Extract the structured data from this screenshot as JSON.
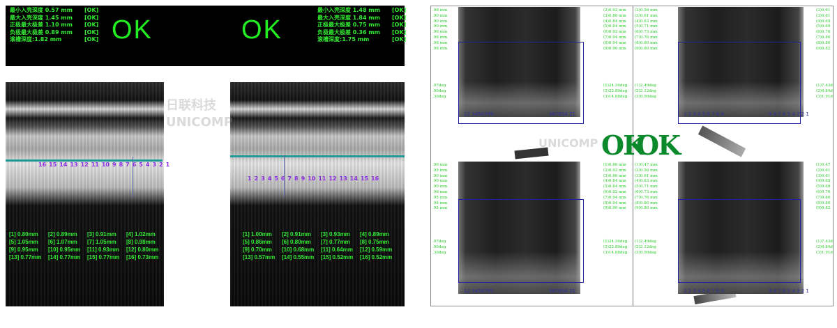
{
  "left_view": {
    "top_left": {
      "lines": [
        {
          "label": "最小入壳深度 0.57 mm",
          "status": "[OK]"
        },
        {
          "label": "最大入壳深度 1.45 mm",
          "status": "[OK]"
        },
        {
          "label": "正极最大极差 1.10 mm",
          "status": "[OK]"
        },
        {
          "label": "负极最大极差 0.89 mm",
          "status": "[OK]"
        },
        {
          "label": "滚槽深度:1.82 mm",
          "status": "[OK]"
        }
      ],
      "result": "OK"
    },
    "top_right": {
      "lines": [
        {
          "label": "最小入壳深度 1.48 mm",
          "status": "[OK]"
        },
        {
          "label": "最大入壳深度 1.84 mm",
          "status": "[OK]"
        },
        {
          "label": "正极最大极差 0.75 mm",
          "status": "[OK]"
        },
        {
          "label": "负极最大极差 0.36 mm",
          "status": "[OK]"
        },
        {
          "label": "滚槽深度:1.75 mm",
          "status": "[OK]"
        }
      ],
      "result": "OK"
    },
    "left_image": {
      "point_labels": [
        "16",
        "15",
        "14",
        "13",
        "12",
        "11",
        "10",
        "9",
        "8",
        "7",
        "6",
        "5",
        "4",
        "3",
        "2",
        "1"
      ],
      "values": [
        "[1] 0.80mm",
        "[2] 0.89mm",
        "[3] 0.91mm",
        "[4] 1.02mm",
        "[5] 1.05mm",
        "[6] 1.07mm",
        "[7] 1.05mm",
        "[8] 0.98mm",
        "[9] 0.95mm",
        "[10] 0.95mm",
        "[11] 0.93mm",
        "[12] 0.80mm",
        "[13] 0.77mm",
        "[14] 0.77mm",
        "[15] 0.77mm",
        "[16] 0.73mm"
      ]
    },
    "right_image": {
      "point_labels": [
        "1",
        "2",
        "3",
        "4",
        "5",
        "6",
        "7",
        "8",
        "9",
        "10",
        "11",
        "12",
        "13",
        "14",
        "15",
        "16"
      ],
      "values": [
        "[1] 1.00mm",
        "[2] 0.91mm",
        "[3] 0.93mm",
        "[4] 0.89mm",
        "[5] 0.86mm",
        "[6] 0.80mm",
        "[7] 0.77mm",
        "[8] 0.75mm",
        "[9] 0.70mm",
        "[10] 0.68mm",
        "[11] 0.64mm",
        "[12] 0.59mm",
        "[13] 0.57mm",
        "[14] 0.55mm",
        "[15] 0.52mm",
        "[16] 0.52mm"
      ]
    },
    "watermark": "日联科技 UNICOMP"
  },
  "right_view": {
    "quadrants": [
      {
        "left_col": ".98 mm\n.90 mm\n.90 mm\n.90 mm\n.96 mm\n.98 mm\n.98 mm\n.98 mm",
        "left_deg": ".07deg\n.00deg\n.30deg",
        "right_col": "(2)0.92 mm\n(3)0.86 mm\n(4)0.84 mm\n(5)0.84 mm\n(6)0.92 mm\n(7)0.94 mm\n(8)0.94 mm\n(9)0.90 mm",
        "right_deg": "(1)24.34deg\n(2)22.89deg\n(3)14.68deg",
        "pts_left": "12 3456789",
        "pts_right": "987654 21"
      },
      {
        "left_col": "(2)0.56 mm\n(3)0.61 mm\n(4)0.63 mm\n(5)0.71 mm\n(6)0.73 mm\n(7)0.76 mm\n(8)0.80 mm\n(9)0.80 mm",
        "left_deg": "(1)2.49deg\n(2)2.12deg\n(3)0.00deg",
        "right_col": "(2)0.61\n(3)0.61\n(4)0.65\n(5)0.69\n(6)0.76\n(7)0.80\n(8)0.80\n(9)0.82",
        "right_deg": "(1)7.43d\n(2)6.84d\n(3)1.91d",
        "pts_left": "1 2 3 4 5 6 7 8 9",
        "pts_right": "9 8 7 6 5 4 3 2 1"
      },
      {
        "left_col": ".96 mm\n.95 mm\n.90 mm\n.90 mm\n.90 mm\n.96 mm\n.95 mm\n.95 mm\n.95 mm",
        "left_deg": ".07deg\n.00deg\n.30deg",
        "right_col": "(1)0.86 mm\n(2)0.92 mm\n(3)0.86 mm\n(4)0.84 mm\n(5)0.84 mm\n(6)0.92 mm\n(7)0.94 mm\n(8)0.94 mm\n(9)0.90 mm",
        "right_deg": "(1)24.34deg\n(2)22.89deg\n(3)14.68deg",
        "pts_left": "12 3456789",
        "pts_right": "987654 21"
      },
      {
        "left_col": "(1)0.47 mm\n(2)0.56 mm\n(3)0.61 mm\n(4)0.63 mm\n(5)0.71 mm\n(6)0.73 mm\n(7)0.76 mm\n(8)0.80 mm\n(9)0.80 mm",
        "left_deg": "(1)2.49deg\n(2)2.12deg\n(3)0.00deg",
        "right_col": "(1)0.47\n(2)0.61\n(3)0.61\n(4)0.65\n(5)0.69\n(6)0.76\n(7)0.80\n(8)0.80\n(9)0.82",
        "right_deg": "(1)7.43d\n(2)6.84d\n(3)1.91d",
        "pts_left": "1 2 3 4 5 6 7 8 9",
        "pts_right": "9 8 7 6 5 4 3 2 1"
      }
    ],
    "result_left": "OK",
    "result_right": "OK",
    "watermark": "UNICOMP"
  },
  "colors": {
    "ok_green": "#22ee22",
    "ok_dark_green": "#0a8a2a",
    "measure_line": "#1f9a96",
    "roi": "#2020a0",
    "labels": "#8a2be2"
  }
}
